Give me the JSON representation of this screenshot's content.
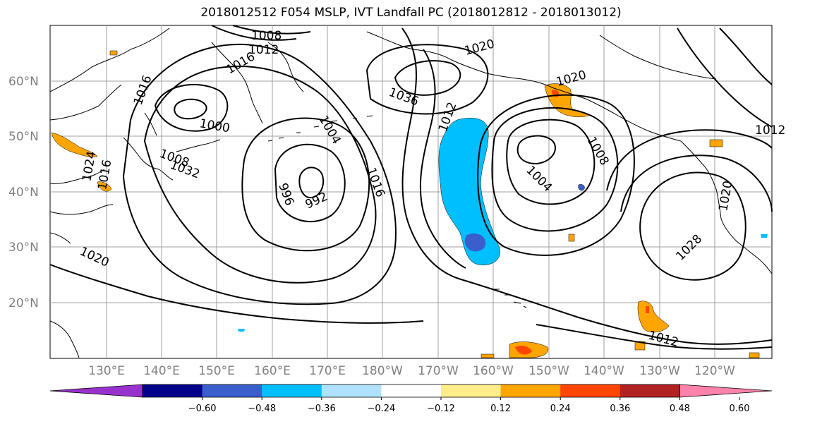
{
  "title": "2018012512 F054 MSLP, IVT Landfall PC (2018012812 - 2018013012)",
  "map": {
    "latitude_labels": [
      "60°N",
      "50°N",
      "40°N",
      "30°N",
      "20°N"
    ],
    "longitude_labels": [
      "130°E",
      "140°E",
      "150°E",
      "160°E",
      "170°E",
      "180°W",
      "170°W",
      "160°W",
      "150°W",
      "140°W",
      "130°W",
      "120°W"
    ],
    "isobar_labels": [
      "1008",
      "1012",
      "1016",
      "1016",
      "1020",
      "1036",
      "1020",
      "1000",
      "1004",
      "1012",
      "1008",
      "1008",
      "996",
      "992",
      "1016",
      "1004",
      "1020",
      "1028",
      "1012",
      "1012",
      "1024",
      "1016",
      "1020",
      "1032"
    ],
    "contour_color": "#000000",
    "grid": true
  },
  "colorbar": {
    "ticks": [
      "−0.60",
      "−0.48",
      "−0.36",
      "−0.24",
      "−0.12",
      "0.12",
      "0.24",
      "0.36",
      "0.48",
      "0.60"
    ],
    "colors": [
      "#9932cc",
      "#00008b",
      "#3a5fcd",
      "#00bfff",
      "#b0e2ff",
      "#ffffff",
      "#ffec8b",
      "#ffa500",
      "#ff4500",
      "#b22222",
      "#ff82ab"
    ]
  }
}
